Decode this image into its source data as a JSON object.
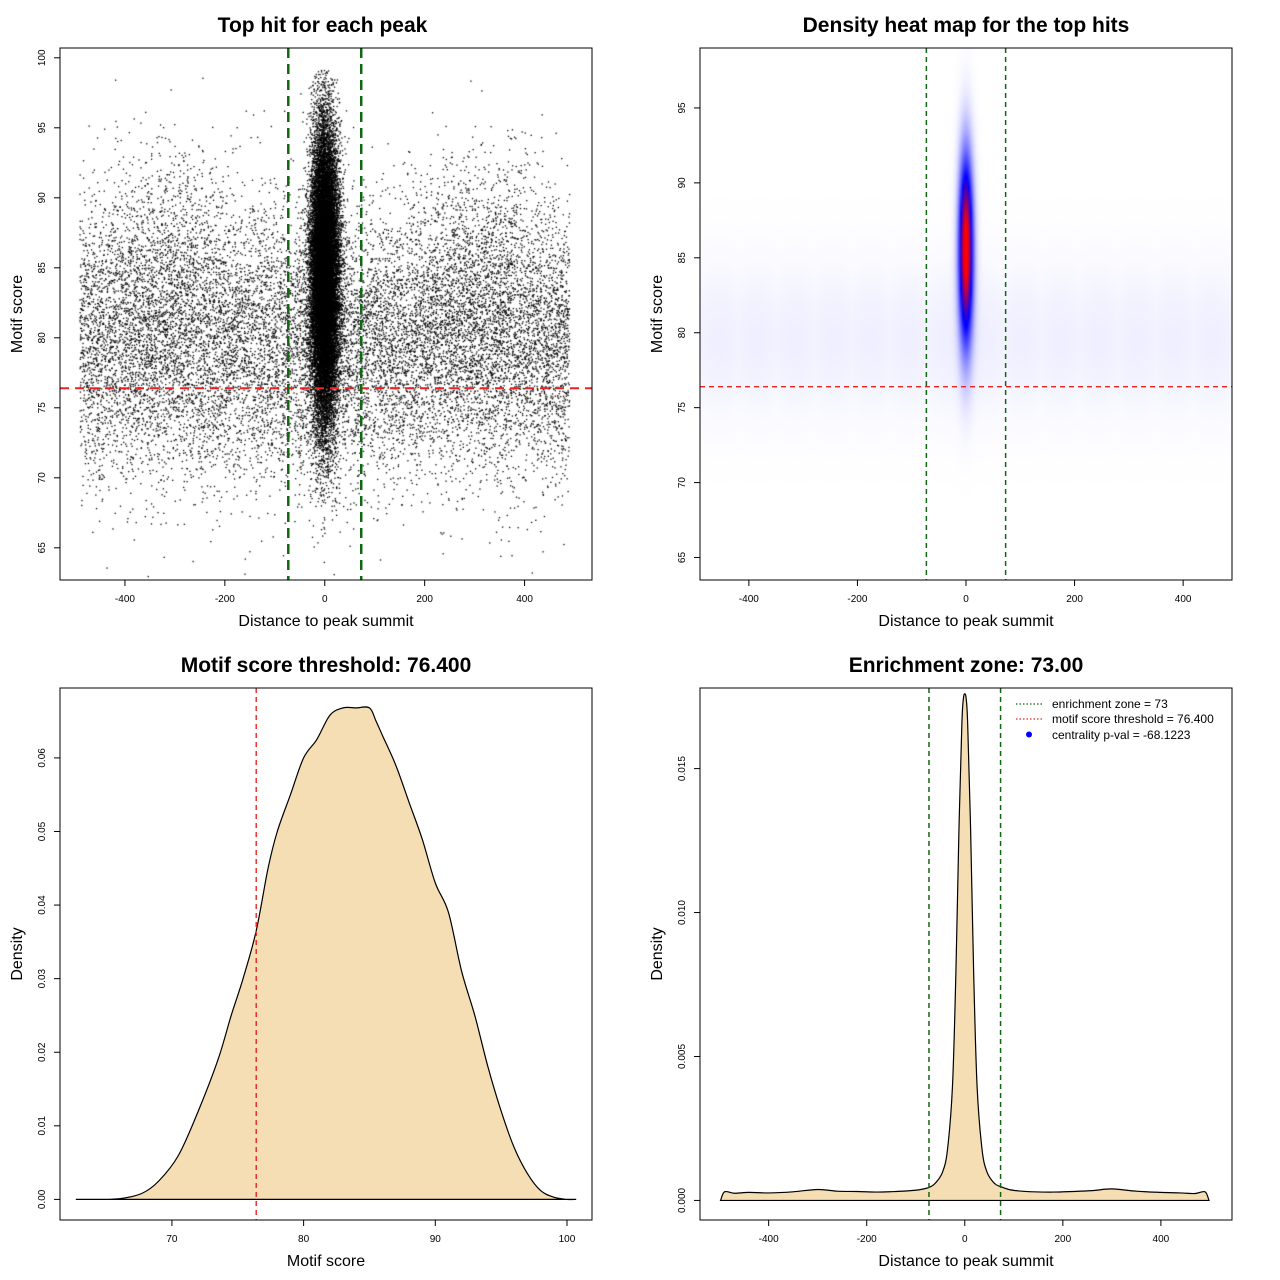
{
  "chart_data": [
    {
      "id": "scatter",
      "type": "scatter",
      "title": "Top hit for each peak",
      "xlabel": "Distance to peak summit",
      "ylabel": "Motif score",
      "xlim": [
        -530,
        535
      ],
      "ylim": [
        62.7,
        100.7
      ],
      "xticks": [
        -400,
        -200,
        0,
        200,
        400
      ],
      "yticks": [
        65,
        70,
        75,
        80,
        85,
        90,
        95,
        100
      ],
      "xtick_labels": [
        "-400",
        "-200",
        "0",
        "200",
        "400"
      ],
      "ytick_labels": [
        "65",
        "70",
        "75",
        "80",
        "85",
        "90",
        "95",
        "100"
      ],
      "threshold": 76.4,
      "enrichment_bounds": [
        -73,
        73
      ],
      "point_color": "#000000",
      "threshold_color": "#ee2222",
      "zone_color": "#116611",
      "background": {
        "x_range": [
          -490,
          490
        ],
        "y_mean": 79.5,
        "y_sd": 4.8,
        "count": 14000
      },
      "central_cluster": {
        "x_mean": 0,
        "x_sd": 14,
        "y_mean": 84.5,
        "y_sd": 5.2,
        "count": 22000
      },
      "side_clusters": [
        {
          "x_mean": -320,
          "x_sd": 70,
          "y_mean": 86,
          "y_sd": 4,
          "count": 900
        },
        {
          "x_mean": 310,
          "x_sd": 70,
          "y_mean": 86,
          "y_sd": 4,
          "count": 900
        }
      ]
    },
    {
      "id": "heatmap",
      "type": "heatmap",
      "title": "Density heat map for the top hits",
      "xlabel": "Distance to peak summit",
      "ylabel": "Motif score",
      "xlim": [
        -490,
        490
      ],
      "ylim": [
        63.5,
        99.0
      ],
      "xticks": [
        -400,
        -200,
        0,
        200,
        400
      ],
      "yticks": [
        65,
        70,
        75,
        80,
        85,
        90,
        95
      ],
      "xtick_labels": [
        "-400",
        "-200",
        "0",
        "200",
        "400"
      ],
      "ytick_labels": [
        "65",
        "70",
        "75",
        "80",
        "85",
        "90",
        "95"
      ],
      "threshold": 76.4,
      "enrichment_bounds": [
        -73,
        73
      ],
      "hotspot": {
        "x": 0,
        "y": 85.5,
        "x_sd": 9,
        "y_sd": 4.2
      },
      "colors": {
        "low": "#ffffff",
        "mid": "#0000ff",
        "high": "#ff0000"
      },
      "threshold_color": "#ee2222",
      "zone_color": "#116611"
    },
    {
      "id": "score_density",
      "type": "area",
      "title": "Motif score threshold: 76.400",
      "xlabel": "Motif score",
      "ylabel": "Density",
      "xlim": [
        61.5,
        101.9
      ],
      "ylim": [
        -0.0028,
        0.0695
      ],
      "xticks": [
        70,
        80,
        90,
        100
      ],
      "yticks": [
        0.0,
        0.01,
        0.02,
        0.03,
        0.04,
        0.05,
        0.06
      ],
      "xtick_labels": [
        "70",
        "80",
        "90",
        "100"
      ],
      "ytick_labels": [
        "0.00",
        "0.01",
        "0.02",
        "0.03",
        "0.04",
        "0.05",
        "0.06"
      ],
      "x": [
        62.7,
        64.0,
        66.0,
        67.7,
        69.0,
        70.5,
        72.0,
        73.5,
        74.5,
        75.4,
        76.4,
        77.3,
        78.0,
        79.0,
        80.0,
        81.0,
        82.0,
        83.0,
        84.0,
        85.0,
        85.5,
        86.0,
        87.0,
        88.0,
        89.0,
        90.0,
        91.0,
        92.0,
        93.0,
        94.0,
        95.0,
        96.0,
        97.0,
        98.0,
        99.0,
        100.0,
        100.7
      ],
      "y": [
        0.0,
        0.0,
        0.0001,
        0.0008,
        0.0025,
        0.006,
        0.012,
        0.019,
        0.025,
        0.03,
        0.0365,
        0.045,
        0.05,
        0.055,
        0.06,
        0.0625,
        0.0658,
        0.0668,
        0.0668,
        0.0668,
        0.065,
        0.063,
        0.059,
        0.054,
        0.049,
        0.043,
        0.039,
        0.031,
        0.025,
        0.018,
        0.012,
        0.007,
        0.0035,
        0.0012,
        0.0003,
        0.0,
        0.0
      ],
      "fill_color": "#f5deb3",
      "threshold": 76.4,
      "threshold_color": "#ee2222"
    },
    {
      "id": "distance_density",
      "type": "area",
      "title": "Enrichment zone: 73.00",
      "xlabel": "Distance to peak summit",
      "ylabel": "Density",
      "xlim": [
        -540,
        545
      ],
      "ylim": [
        -0.00068,
        0.0178
      ],
      "xticks": [
        -400,
        -200,
        0,
        200,
        400
      ],
      "yticks": [
        0.0,
        0.005,
        0.01,
        0.015
      ],
      "xtick_labels": [
        "-400",
        "-200",
        "0",
        "200",
        "400"
      ],
      "ytick_labels": [
        "0.000",
        "0.005",
        "0.010",
        "0.015"
      ],
      "x": [
        -498,
        -490,
        -470,
        -440,
        -400,
        -350,
        -300,
        -260,
        -220,
        -180,
        -140,
        -110,
        -90,
        -73,
        -60,
        -45,
        -35,
        -25,
        -18,
        -12,
        -6,
        -3,
        0,
        3,
        6,
        12,
        18,
        25,
        35,
        45,
        60,
        73,
        90,
        110,
        140,
        180,
        220,
        260,
        300,
        350,
        400,
        440,
        470,
        490,
        498
      ],
      "y": [
        0.0,
        0.0003,
        0.00025,
        0.00028,
        0.00026,
        0.0003,
        0.00038,
        0.00032,
        0.00031,
        0.00029,
        0.00031,
        0.00034,
        0.00038,
        0.00045,
        0.0006,
        0.001,
        0.0018,
        0.004,
        0.008,
        0.0128,
        0.0165,
        0.0174,
        0.0176,
        0.0174,
        0.0165,
        0.0128,
        0.008,
        0.004,
        0.0018,
        0.001,
        0.0006,
        0.00048,
        0.00038,
        0.00033,
        0.0003,
        0.00029,
        0.00031,
        0.00034,
        0.0004,
        0.00032,
        0.00028,
        0.00026,
        0.00024,
        0.0003,
        0.0
      ],
      "fill_color": "#f5deb3",
      "enrichment_bounds": [
        -73,
        73
      ],
      "zone_color": "#116611",
      "legend": {
        "position": "top-right",
        "entries": [
          {
            "label": "enrichment zone = 73",
            "kind": "dotted-line",
            "color": "#116611"
          },
          {
            "label": "motif score threshold = 76.400",
            "kind": "dotted-line",
            "color": "#ee2222"
          },
          {
            "label": "centrality p-val = -68.1223",
            "kind": "point",
            "color": "#0000ff"
          }
        ]
      }
    }
  ]
}
